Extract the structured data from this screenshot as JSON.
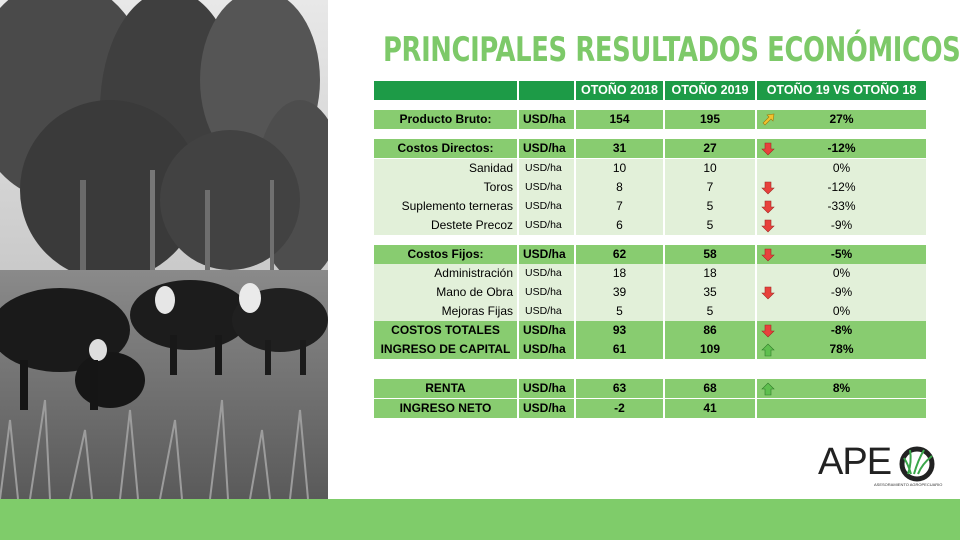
{
  "title": "PRINCIPALES RESULTADOS ECONÓMICOS",
  "header": {
    "col0": "",
    "col1": "",
    "col2": "OTOÑO 2018",
    "col3": "OTOÑO 2019",
    "col4": "OTOÑO 19 VS OTOÑO 18"
  },
  "rows": [
    {
      "label": "Producto Bruto:",
      "unit": "USD/ha",
      "v2018": "154",
      "v2019": "195",
      "trend": "up-diagonal",
      "change": "27%",
      "style": "main"
    },
    {
      "label": "Costos Directos:",
      "unit": "USD/ha",
      "v2018": "31",
      "v2019": "27",
      "trend": "down",
      "change": "-12%",
      "style": "main"
    },
    {
      "label": "Sanidad",
      "unit": "USD/ha",
      "v2018": "10",
      "v2019": "10",
      "trend": "none",
      "change": "0%",
      "style": "sub"
    },
    {
      "label": "Toros",
      "unit": "USD/ha",
      "v2018": "8",
      "v2019": "7",
      "trend": "down",
      "change": "-12%",
      "style": "sub"
    },
    {
      "label": "Suplemento terneras",
      "unit": "USD/ha",
      "v2018": "7",
      "v2019": "5",
      "trend": "down",
      "change": "-33%",
      "style": "sub"
    },
    {
      "label": "Destete Precoz",
      "unit": "USD/ha",
      "v2018": "6",
      "v2019": "5",
      "trend": "down",
      "change": "-9%",
      "style": "sub"
    },
    {
      "label": "Costos Fijos:",
      "unit": "USD/ha",
      "v2018": "62",
      "v2019": "58",
      "trend": "down",
      "change": "-5%",
      "style": "main"
    },
    {
      "label": "Administración",
      "unit": "USD/ha",
      "v2018": "18",
      "v2019": "18",
      "trend": "none",
      "change": "0%",
      "style": "sub"
    },
    {
      "label": "Mano de Obra",
      "unit": "USD/ha",
      "v2018": "39",
      "v2019": "35",
      "trend": "down",
      "change": "-9%",
      "style": "sub"
    },
    {
      "label": "Mejoras Fijas",
      "unit": "USD/ha",
      "v2018": "5",
      "v2019": "5",
      "trend": "none",
      "change": "0%",
      "style": "sub"
    },
    {
      "label": "COSTOS TOTALES",
      "unit": "USD/ha",
      "v2018": "93",
      "v2019": "86",
      "trend": "down",
      "change": "-8%",
      "style": "main"
    },
    {
      "label": "INGRESO DE CAPITAL",
      "unit": "USD/ha",
      "v2018": "61",
      "v2019": "109",
      "trend": "up",
      "change": "78%",
      "style": "main"
    },
    {
      "label": "RENTA",
      "unit": "USD/ha",
      "v2018": "63",
      "v2019": "68",
      "trend": "up",
      "change": "8%",
      "style": "main"
    },
    {
      "label": "INGRESO NETO",
      "unit": "USD/ha",
      "v2018": "-2",
      "v2019": "41",
      "trend": "none",
      "change": "",
      "style": "main"
    }
  ],
  "logo": {
    "text": "APE",
    "tagline": "ASESORAMIENTO AGROPECUARIO"
  },
  "colors": {
    "accent": "#7dc969",
    "header": "#1d9b47",
    "main_row": "#88cc70",
    "sub_row": "#e2f0d9",
    "down_arrow": "#e8413c",
    "up_arrow": "#5fbf4f",
    "diag_arrow": "#f2c22e",
    "band": "#7fcc6a"
  },
  "icons": {
    "photo": "cattle-field-photo",
    "down": "arrow-down-icon",
    "up": "arrow-up-icon",
    "diag": "arrow-up-right-icon",
    "logo": "grass-circle-icon"
  }
}
